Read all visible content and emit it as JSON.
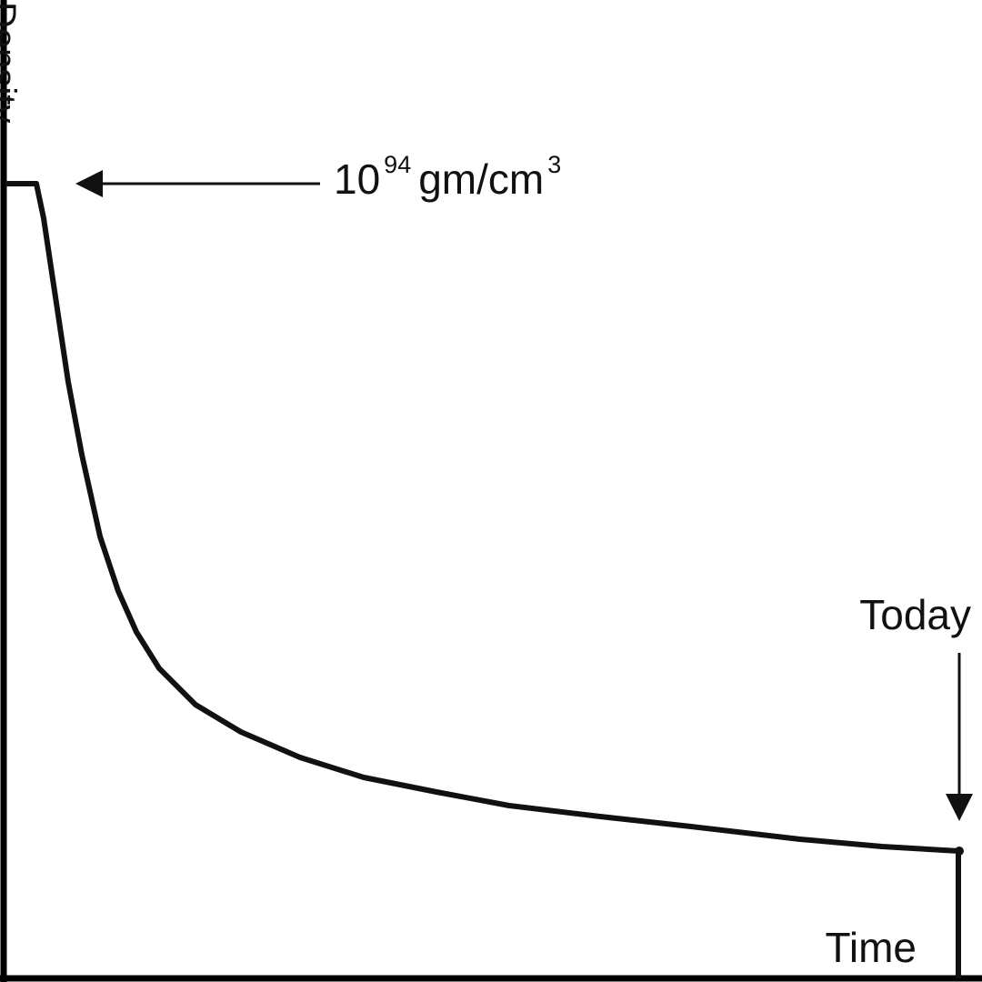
{
  "chart_data": {
    "type": "line",
    "title": "",
    "xlabel": "Time",
    "ylabel": "Density",
    "annotations": {
      "peak": {
        "base": "10",
        "exponent": "94",
        "unit": "gm/cm",
        "unit_exponent": "3"
      },
      "today": "Today"
    },
    "grid": false,
    "legend": "none",
    "colors": {
      "line": "#111111",
      "axis": "#000000"
    }
  }
}
